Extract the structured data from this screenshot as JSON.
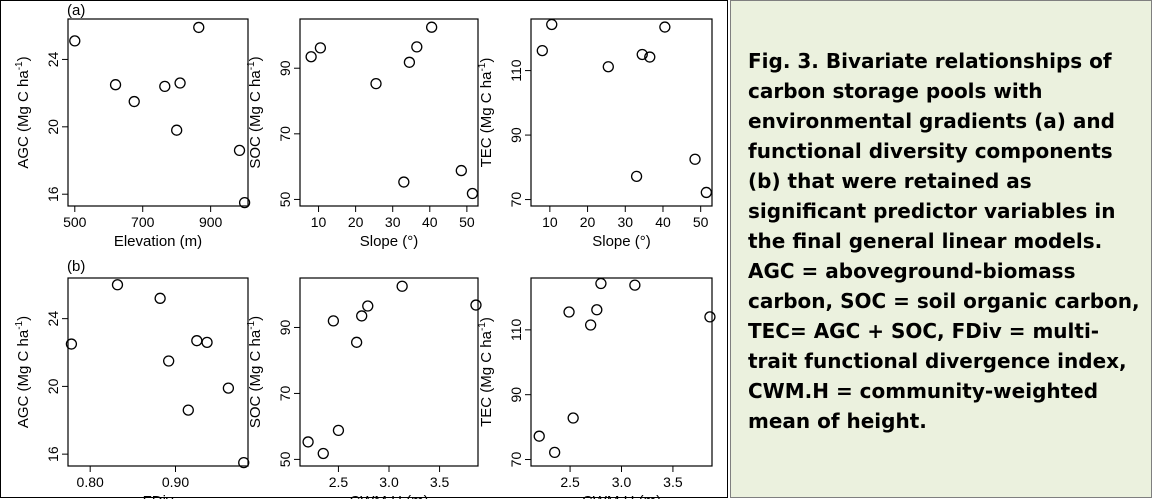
{
  "panel_labels": {
    "a": "(a)",
    "b": "(b)"
  },
  "caption": "Fig. 3. Bivariate relationships of carbon storage pools with environmental gradients (a) and functional diversity components (b) that were retained as significant predictor variables in the final general linear models. AGC = aboveground-biomass carbon, SOC = soil organic carbon, TEC= AGC + SOC, FDiv = multi-trait functional divergence index, CWM.H = community-weighted mean of height.",
  "colors": {
    "caption_bg": "#ebf1de",
    "caption_border": "#7f7f7f",
    "marker": "#000000"
  },
  "chart_data": [
    {
      "type": "scatter",
      "panel": "(a)",
      "xlabel": "Elevation (m)",
      "ylabel": "AGC (Mg C ha",
      "ylabel_sup": "-1",
      "ylabel_close": ")",
      "xlim": [
        480,
        1010
      ],
      "ylim": [
        15.3,
        26.4
      ],
      "xticks": [
        500,
        700,
        900
      ],
      "xtick_labels": [
        "500",
        "700",
        "900"
      ],
      "yticks": [
        16,
        20,
        24
      ],
      "ytick_labels": [
        "16",
        "20",
        "24"
      ],
      "points": [
        [
          500,
          25.1
        ],
        [
          620,
          22.5
        ],
        [
          675,
          21.5
        ],
        [
          765,
          22.4
        ],
        [
          800,
          19.8
        ],
        [
          810,
          22.6
        ],
        [
          865,
          25.9
        ],
        [
          985,
          18.6
        ],
        [
          1000,
          15.5
        ]
      ]
    },
    {
      "type": "scatter",
      "panel": "(a)",
      "xlabel": "Slope (°)",
      "ylabel": "SOC (Mg C ha",
      "ylabel_sup": "-1",
      "ylabel_close": ")",
      "xlim": [
        5,
        53
      ],
      "ylim": [
        48,
        105
      ],
      "xticks": [
        10,
        20,
        30,
        40,
        50
      ],
      "xtick_labels": [
        "10",
        "20",
        "30",
        "40",
        "50"
      ],
      "yticks": [
        50,
        70,
        90
      ],
      "ytick_labels": [
        "50",
        "70",
        "90"
      ],
      "points": [
        [
          8,
          93.5
        ],
        [
          10.5,
          96.2
        ],
        [
          25.5,
          85.3
        ],
        [
          33,
          55.3
        ],
        [
          34.5,
          91.8
        ],
        [
          36.5,
          96.5
        ],
        [
          40.5,
          102.5
        ],
        [
          48.5,
          58.8
        ],
        [
          51.5,
          51.8
        ]
      ]
    },
    {
      "type": "scatter",
      "panel": "(a)",
      "xlabel": "Slope (°)",
      "ylabel": "TEC (Mg C ha",
      "ylabel_sup": "-1",
      "ylabel_close": ")",
      "xlim": [
        5,
        53
      ],
      "ylim": [
        68,
        126
      ],
      "xticks": [
        10,
        20,
        30,
        40,
        50
      ],
      "xtick_labels": [
        "10",
        "20",
        "30",
        "40",
        "50"
      ],
      "yticks": [
        70,
        90,
        110
      ],
      "ytick_labels": [
        "70",
        "90",
        "110"
      ],
      "points": [
        [
          8,
          116.2
        ],
        [
          10.5,
          124.3
        ],
        [
          25.5,
          111.2
        ],
        [
          33,
          77.2
        ],
        [
          34.5,
          115
        ],
        [
          36.5,
          114.2
        ],
        [
          40.5,
          123.5
        ],
        [
          48.5,
          82.5
        ],
        [
          51.5,
          72.2
        ]
      ]
    },
    {
      "type": "scatter",
      "panel": "(b)",
      "xlabel": "FDiv",
      "ylabel": "AGC (Mg C ha",
      "ylabel_sup": "-1",
      "ylabel_close": ")",
      "xlim": [
        0.774,
        0.985
      ],
      "ylim": [
        15.3,
        26.4
      ],
      "xticks": [
        0.8,
        0.9
      ],
      "xtick_labels": [
        "0.80",
        "0.90"
      ],
      "yticks": [
        16,
        20,
        24
      ],
      "ytick_labels": [
        "16",
        "20",
        "24"
      ],
      "points": [
        [
          0.778,
          22.5
        ],
        [
          0.832,
          26
        ],
        [
          0.882,
          25.2
        ],
        [
          0.892,
          21.5
        ],
        [
          0.915,
          18.6
        ],
        [
          0.925,
          22.7
        ],
        [
          0.937,
          22.6
        ],
        [
          0.962,
          19.9
        ],
        [
          0.98,
          15.5
        ]
      ]
    },
    {
      "type": "scatter",
      "panel": "(b)",
      "xlabel": "CWM.H (m)",
      "ylabel": "SOC (Mg C ha",
      "ylabel_sup": "-1",
      "ylabel_close": ")",
      "xlim": [
        2.12,
        3.88
      ],
      "ylim": [
        48,
        105
      ],
      "xticks": [
        2.5,
        3.0,
        3.5
      ],
      "xtick_labels": [
        "2.5",
        "3.0",
        "3.5"
      ],
      "yticks": [
        50,
        70,
        90
      ],
      "ytick_labels": [
        "50",
        "70",
        "90"
      ],
      "points": [
        [
          2.2,
          55.3
        ],
        [
          2.35,
          51.8
        ],
        [
          2.45,
          92
        ],
        [
          2.5,
          58.8
        ],
        [
          2.68,
          85.5
        ],
        [
          2.73,
          93.5
        ],
        [
          2.79,
          96.5
        ],
        [
          3.13,
          102.5
        ],
        [
          3.86,
          96.8
        ]
      ]
    },
    {
      "type": "scatter",
      "panel": "(b)",
      "xlabel": "CWM.H (m)",
      "ylabel": "TEC (Mg C ha",
      "ylabel_sup": "-1",
      "ylabel_close": ")",
      "xlim": [
        2.12,
        3.88
      ],
      "ylim": [
        68,
        126
      ],
      "xticks": [
        2.5,
        3.0,
        3.5
      ],
      "xtick_labels": [
        "2.5",
        "3.0",
        "3.5"
      ],
      "yticks": [
        70,
        90,
        110
      ],
      "ytick_labels": [
        "70",
        "90",
        "110"
      ],
      "points": [
        [
          2.2,
          77.2
        ],
        [
          2.35,
          72.2
        ],
        [
          2.49,
          115.5
        ],
        [
          2.53,
          82.8
        ],
        [
          2.7,
          111.5
        ],
        [
          2.76,
          116.2
        ],
        [
          2.8,
          124.3
        ],
        [
          3.13,
          123.8
        ],
        [
          3.86,
          114
        ]
      ]
    }
  ]
}
